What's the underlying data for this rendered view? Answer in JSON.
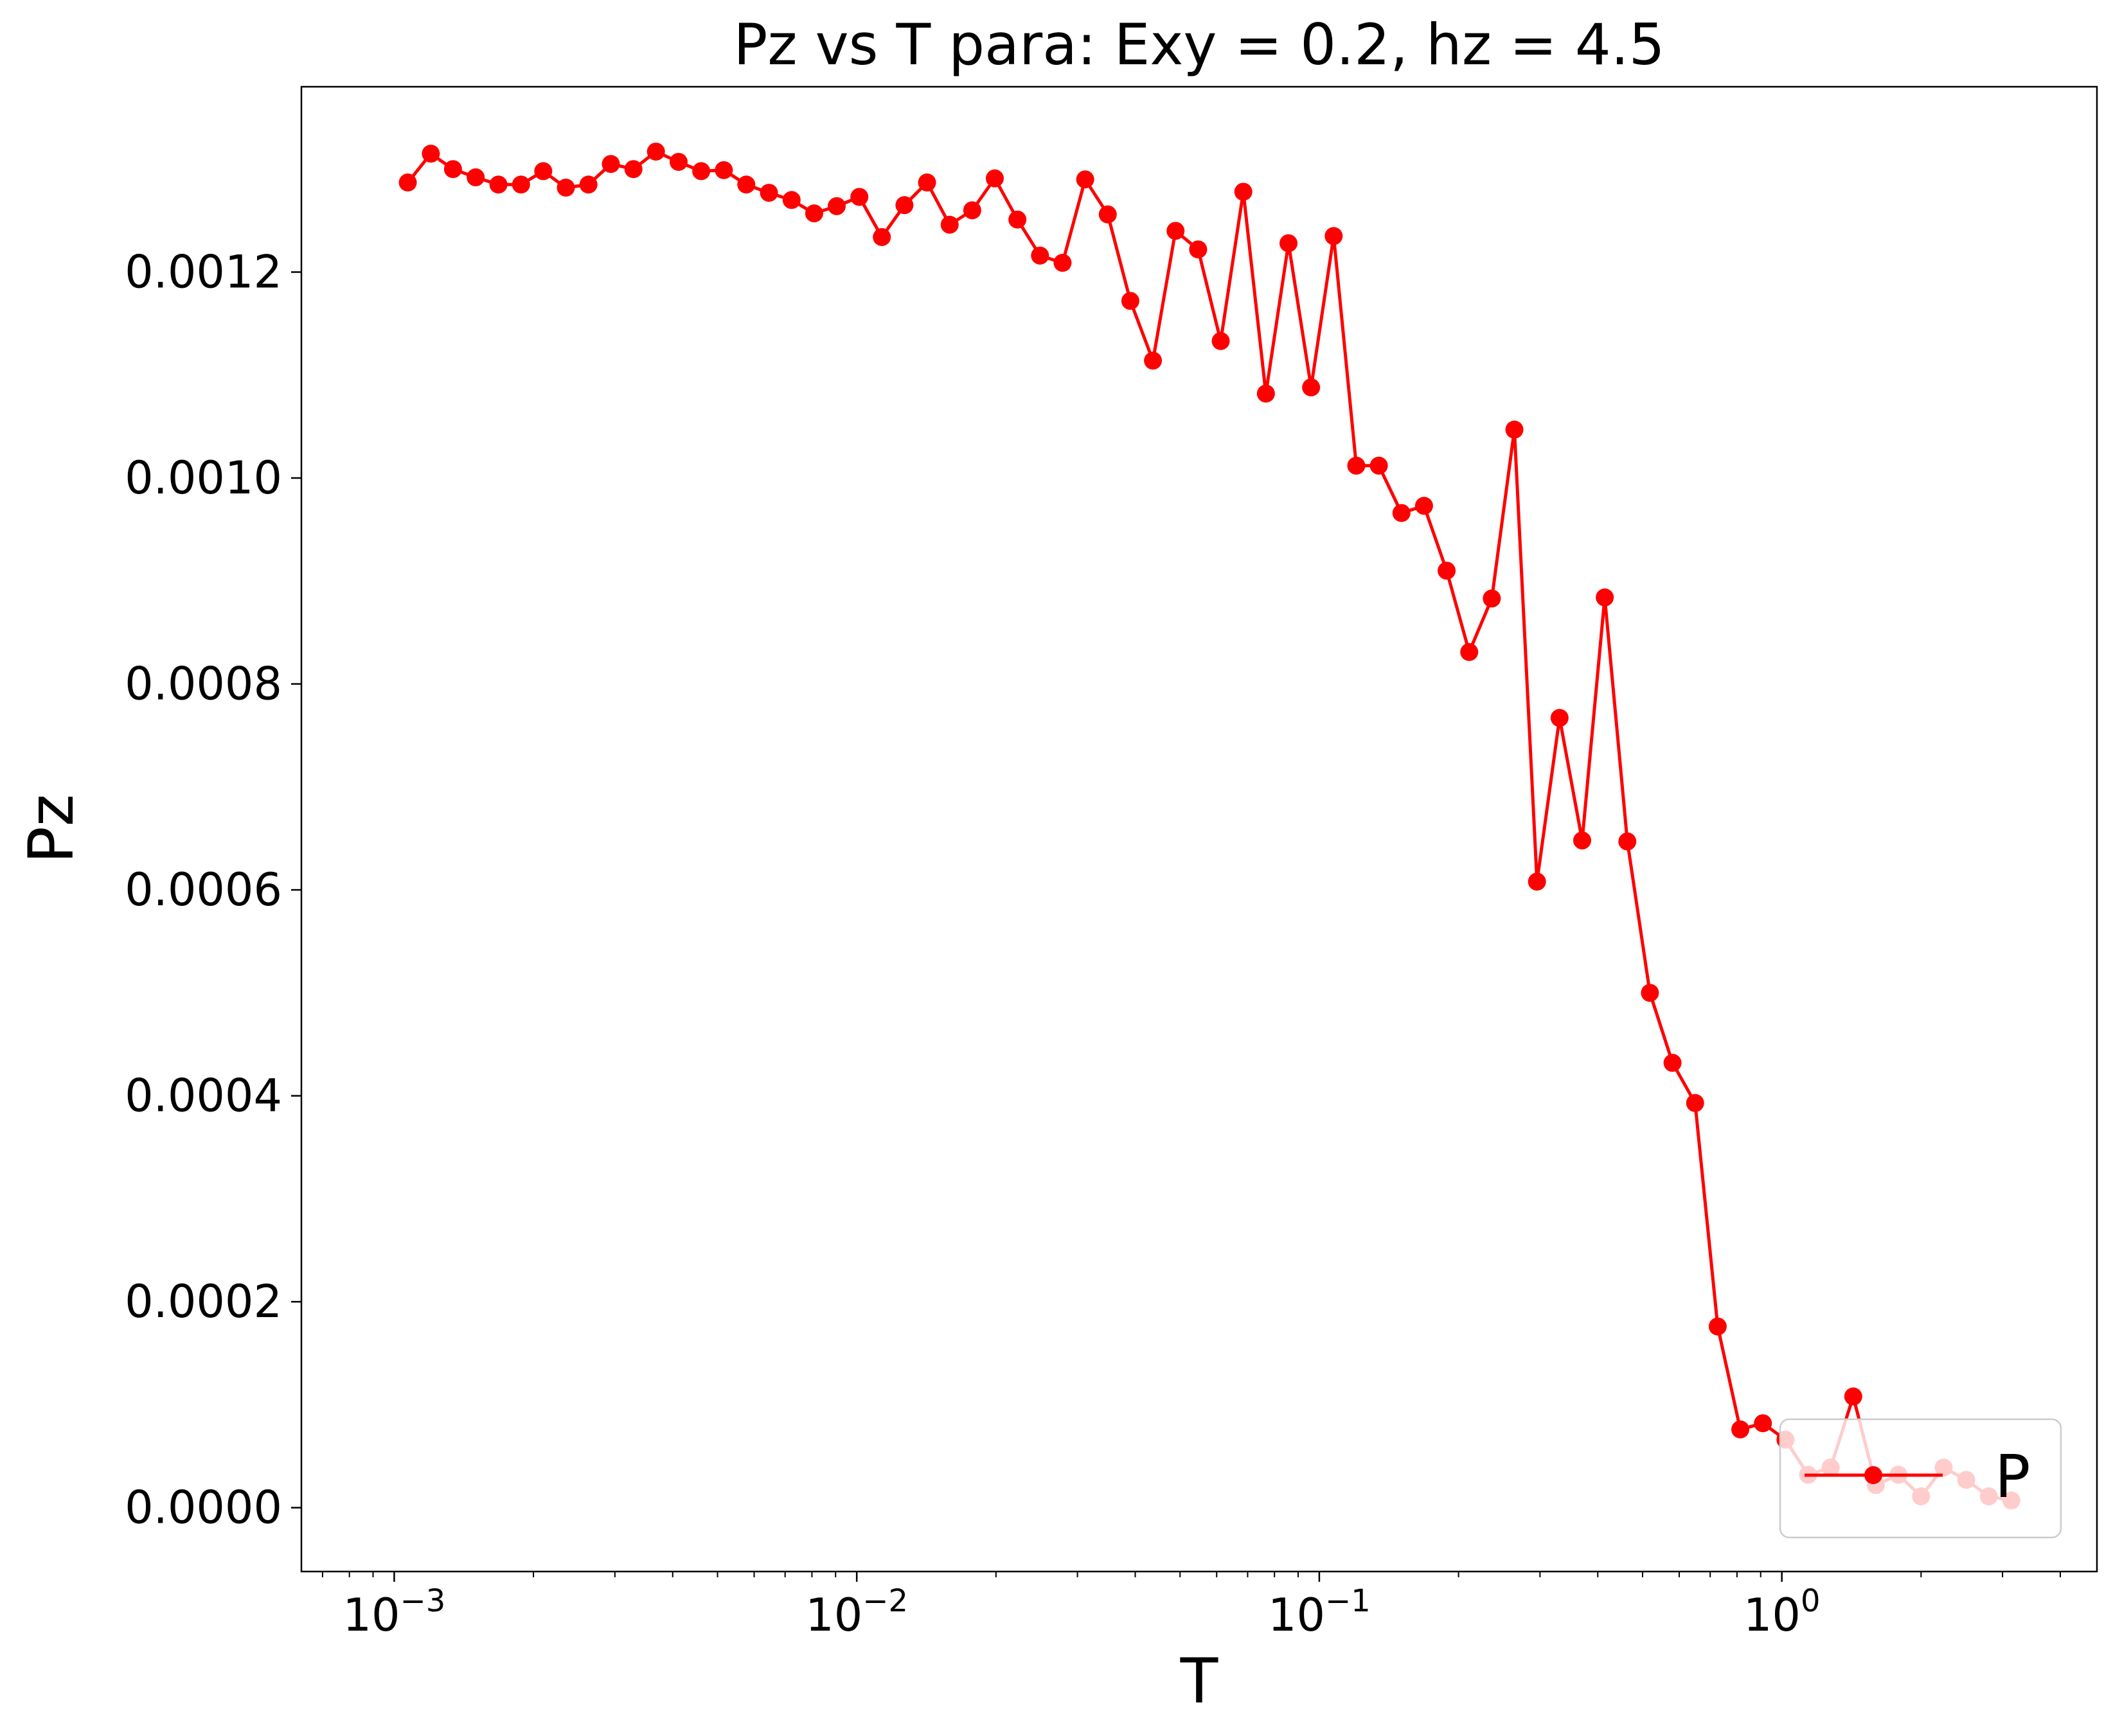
{
  "chart_data": {
    "type": "line",
    "title": "Pz vs T para: Exy = 0.2, hz = 4.5",
    "xlabel": "T",
    "ylabel": "Pz",
    "xscale": "log",
    "xlim": [
      0.00063,
      4.8
    ],
    "ylim": [
      -6.2e-05,
      0.00138
    ],
    "grid": false,
    "legend_position": "lower-right",
    "x_tick_labels": [
      {
        "value": 0.001,
        "base": "10",
        "exp": "−3"
      },
      {
        "value": 0.01,
        "base": "10",
        "exp": "−2"
      },
      {
        "value": 0.1,
        "base": "10",
        "exp": "−1"
      },
      {
        "value": 1,
        "base": "10",
        "exp": "0"
      }
    ],
    "y_ticks": [
      0,
      0.0002,
      0.0004,
      0.0006,
      0.0008,
      0.001,
      0.0012
    ],
    "y_tick_labels": [
      "0.0000",
      "0.0002",
      "0.0004",
      "0.0006",
      "0.0008",
      "0.0010",
      "0.0012"
    ],
    "series": [
      {
        "name": "P",
        "color": "#ff0000",
        "marker": "circle",
        "x": [
          0.00107,
          0.0012,
          0.00134,
          0.0015,
          0.00168,
          0.00188,
          0.0021,
          0.00235,
          0.00263,
          0.00294,
          0.00329,
          0.00368,
          0.00412,
          0.00461,
          0.00516,
          0.00577,
          0.00646,
          0.00723,
          0.00809,
          0.00905,
          0.01013,
          0.01133,
          0.01268,
          0.01419,
          0.01588,
          0.01777,
          0.01988,
          0.02225,
          0.0249,
          0.02786,
          0.03118,
          0.03489,
          0.03904,
          0.04369,
          0.04889,
          0.05471,
          0.06122,
          0.06851,
          0.07666,
          0.08579,
          0.096,
          0.10743,
          0.12021,
          0.13452,
          0.15053,
          0.16845,
          0.1885,
          0.21093,
          0.23604,
          0.26413,
          0.29557,
          0.33075,
          0.37011,
          0.41416,
          0.46345,
          0.51861,
          0.58034,
          0.64941,
          0.72671,
          0.81321,
          0.91,
          1.01831,
          1.13952,
          1.27515,
          1.42693,
          1.59676,
          1.78682,
          1.99949,
          2.23748,
          2.50379,
          2.8018,
          3.13528
        ],
        "values": [
          0.001287,
          0.001315,
          0.0013,
          0.001292,
          0.001285,
          0.001285,
          0.001298,
          0.001282,
          0.001285,
          0.001305,
          0.0013,
          0.001317,
          0.001307,
          0.001298,
          0.001299,
          0.001285,
          0.001277,
          0.00127,
          0.001257,
          0.001264,
          0.001273,
          0.001234,
          0.001265,
          0.001287,
          0.001246,
          0.00126,
          0.001291,
          0.001251,
          0.001216,
          0.001209,
          0.00129,
          0.001256,
          0.001172,
          0.001114,
          0.00124,
          0.001222,
          0.001133,
          0.001278,
          0.001082,
          0.001228,
          0.001088,
          0.001235,
          0.001012,
          0.001012,
          0.000966,
          0.000973,
          0.00091,
          0.000831,
          0.000883,
          0.001047,
          0.000608,
          0.000767,
          0.000648,
          0.000884,
          0.000647,
          0.0005,
          0.000432,
          0.000393,
          0.000176,
          7.6e-05,
          8.2e-05,
          6.6e-05,
          3.2e-05,
          3.9e-05,
          0.000108,
          2.2e-05,
          3.2e-05,
          1.1e-05,
          3.9e-05,
          2.7e-05,
          1.1e-05,
          7e-06
        ]
      }
    ]
  }
}
